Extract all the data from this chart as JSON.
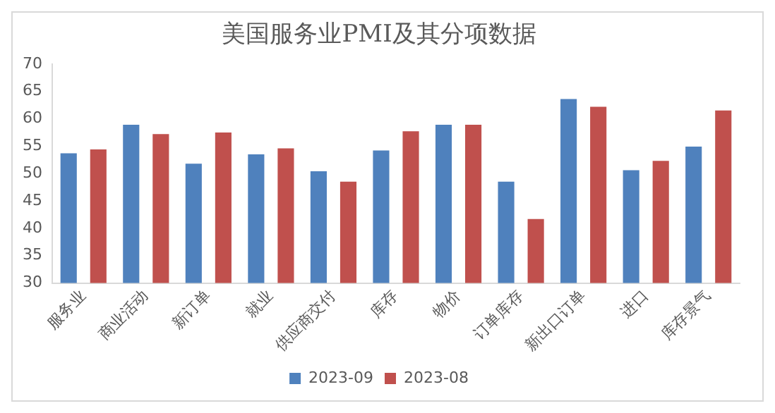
{
  "chart_data": {
    "type": "bar",
    "title": "美国服务业PMI及其分项数据",
    "categories": [
      "服务业",
      "商业活动",
      "新订单",
      "就业",
      "供应商交付",
      "库存",
      "物价",
      "订单库存",
      "新出口订单",
      "进口",
      "库存景气"
    ],
    "series": [
      {
        "name": "2023-09",
        "color": "#4f81bd",
        "values": [
          53.7,
          58.9,
          51.8,
          53.5,
          50.4,
          54.2,
          58.9,
          48.5,
          63.6,
          50.6,
          54.9
        ]
      },
      {
        "name": "2023-08",
        "color": "#c0504d",
        "values": [
          54.4,
          57.2,
          57.5,
          54.6,
          48.5,
          57.7,
          58.9,
          41.7,
          62.2,
          52.3,
          61.5
        ]
      }
    ],
    "ylim": [
      30,
      70
    ],
    "yticks": [
      30,
      35,
      40,
      45,
      50,
      55,
      60,
      65,
      70
    ],
    "grid": false,
    "legend": "bottom"
  }
}
